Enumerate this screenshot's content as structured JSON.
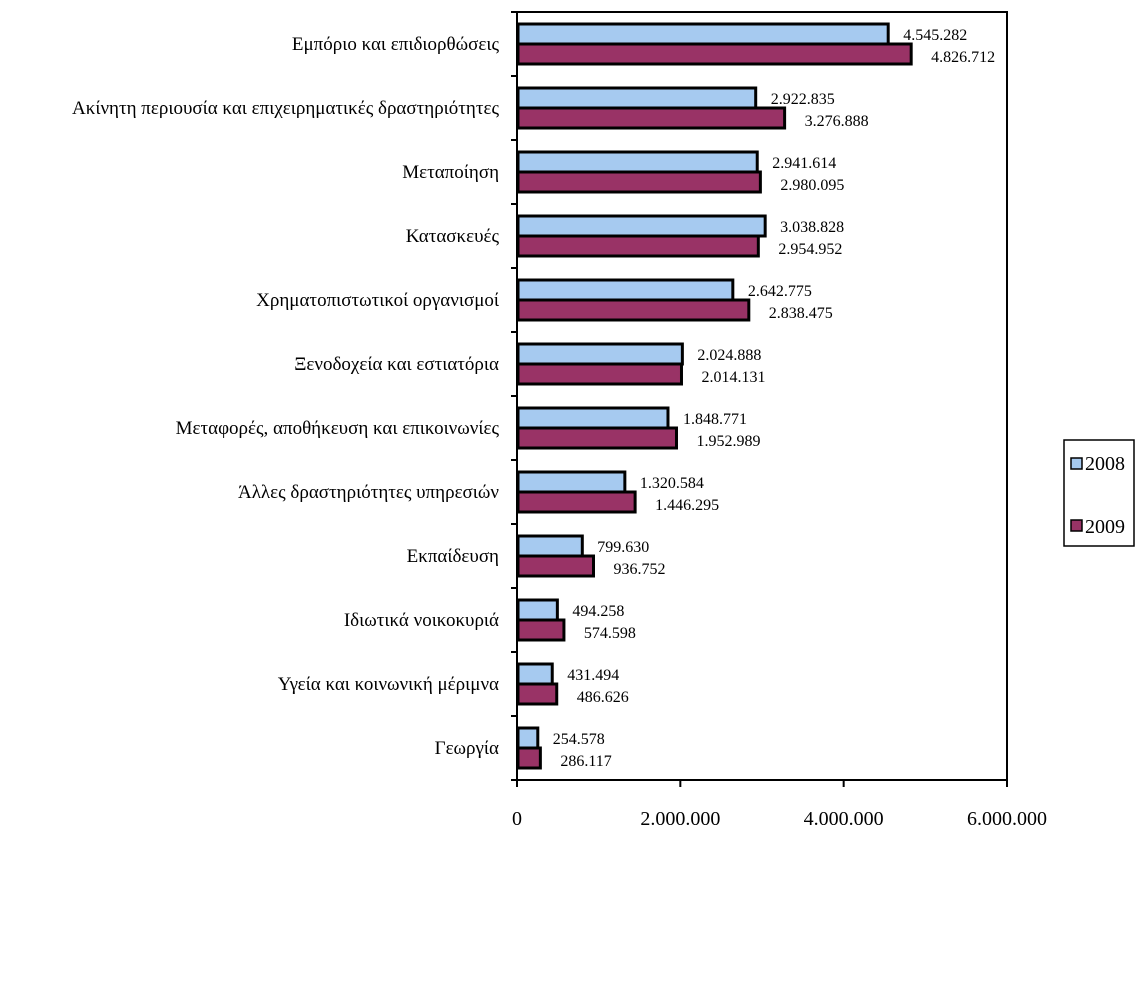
{
  "colors": {
    "series_2008": "#a6caf0",
    "series_2009": "#993366",
    "stroke": "#000000",
    "background": "#ffffff"
  },
  "chart_data": {
    "type": "bar",
    "orientation": "horizontal",
    "title": "",
    "xlabel": "",
    "ylabel": "",
    "xlim": [
      0,
      6000000
    ],
    "x_ticks": [
      0,
      2000000,
      4000000,
      6000000
    ],
    "x_tick_labels": [
      "0",
      "2.000.000",
      "4.000.000",
      "6.000.000"
    ],
    "grid": false,
    "legend_position": "right",
    "categories": [
      "Εμπόριο και επιδιορθώσεις",
      "Ακίνητη περιουσία και επιχειρηματικές δραστηριότητες",
      "Μεταποίηση",
      "Κατασκευές",
      "Χρηματοπιστωτικοί οργανισμοί",
      "Ξενοδοχεία και εστιατόρια",
      "Μεταφορές, αποθήκευση και επικοινωνίες",
      "Άλλες δραστηριότητες υπηρεσιών",
      "Εκπαίδευση",
      "Ιδιωτικά νοικοκυριά",
      "Υγεία και κοινωνική μέριμνα",
      "Γεωργία"
    ],
    "series": [
      {
        "name": "2008",
        "values": [
          4545282,
          2922835,
          2941614,
          3038828,
          2642775,
          2024888,
          1848771,
          1320584,
          799630,
          494258,
          431494,
          254578
        ],
        "labels": [
          "4.545.282",
          "2.922.835",
          "2.941.614",
          "3.038.828",
          "2.642.775",
          "2.024.888",
          "1.848.771",
          "1.320.584",
          "799.630",
          "494.258",
          "431.494",
          "254.578"
        ]
      },
      {
        "name": "2009",
        "values": [
          4826712,
          3276888,
          2980095,
          2954952,
          2838475,
          2014131,
          1952989,
          1446295,
          936752,
          574598,
          486626,
          286117
        ],
        "labels": [
          "4.826.712",
          "3.276.888",
          "2.980.095",
          "2.954.952",
          "2.838.475",
          "2.014.131",
          "1.952.989",
          "1.446.295",
          "936.752",
          "574.598",
          "486.626",
          "286.117"
        ]
      }
    ]
  }
}
